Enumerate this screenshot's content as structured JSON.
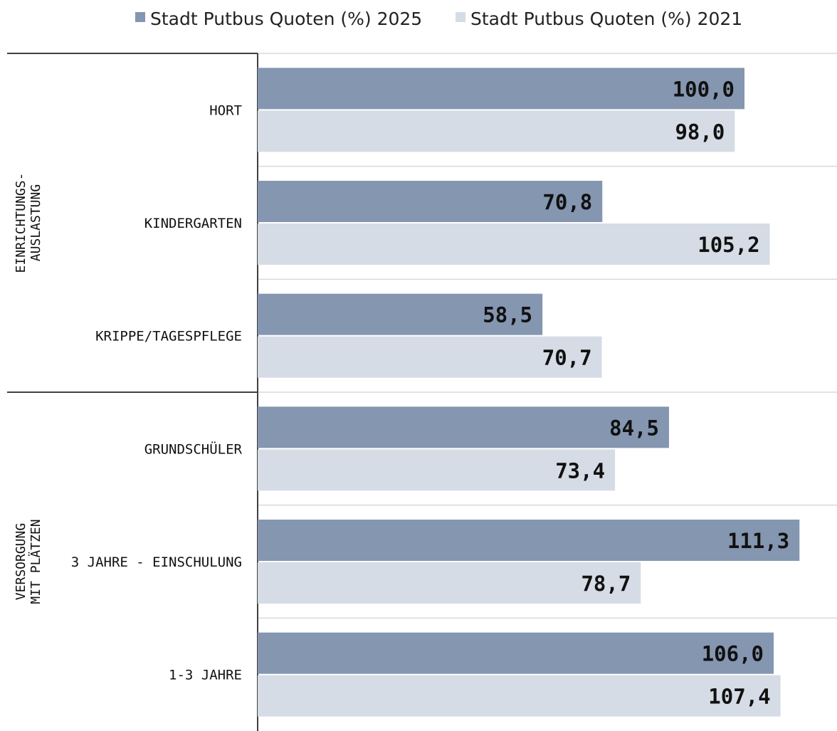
{
  "chart_data": {
    "type": "bar",
    "orientation": "horizontal",
    "title": "",
    "xlabel": "",
    "ylabel": "",
    "xlim": [
      0,
      124
    ],
    "grid": false,
    "legend_position": "top",
    "decimal_separator": ",",
    "series": [
      {
        "name": "Stadt Putbus Quoten (%) 2025",
        "color": "#8496b0",
        "values": [
          100.0,
          70.8,
          58.5,
          84.5,
          111.3,
          106.0
        ]
      },
      {
        "name": "Stadt Putbus Quoten (%) 2021",
        "color": "#d6dce5",
        "values": [
          98.0,
          105.2,
          70.7,
          73.4,
          78.7,
          107.4
        ]
      }
    ],
    "categories": [
      "HORT",
      "KINDERGARTEN",
      "KRIPPE/TAGESPFLEGE",
      "GRUNDSCHÜLER",
      "3 JAHRE - EINSCHULUNG",
      "1-3 JAHRE"
    ],
    "groups": [
      {
        "lines": [
          "EINRICHTUNGS-",
          "AUSLASTUNG"
        ],
        "categories": [
          "HORT",
          "KINDERGARTEN",
          "KRIPPE/TAGESPFLEGE"
        ]
      },
      {
        "lines": [
          "VERSORGUNG",
          "MIT PLÄTZEN"
        ],
        "categories": [
          "GRUNDSCHÜLER",
          "3 JAHRE - EINSCHULUNG",
          "1-3 JAHRE"
        ]
      }
    ]
  }
}
